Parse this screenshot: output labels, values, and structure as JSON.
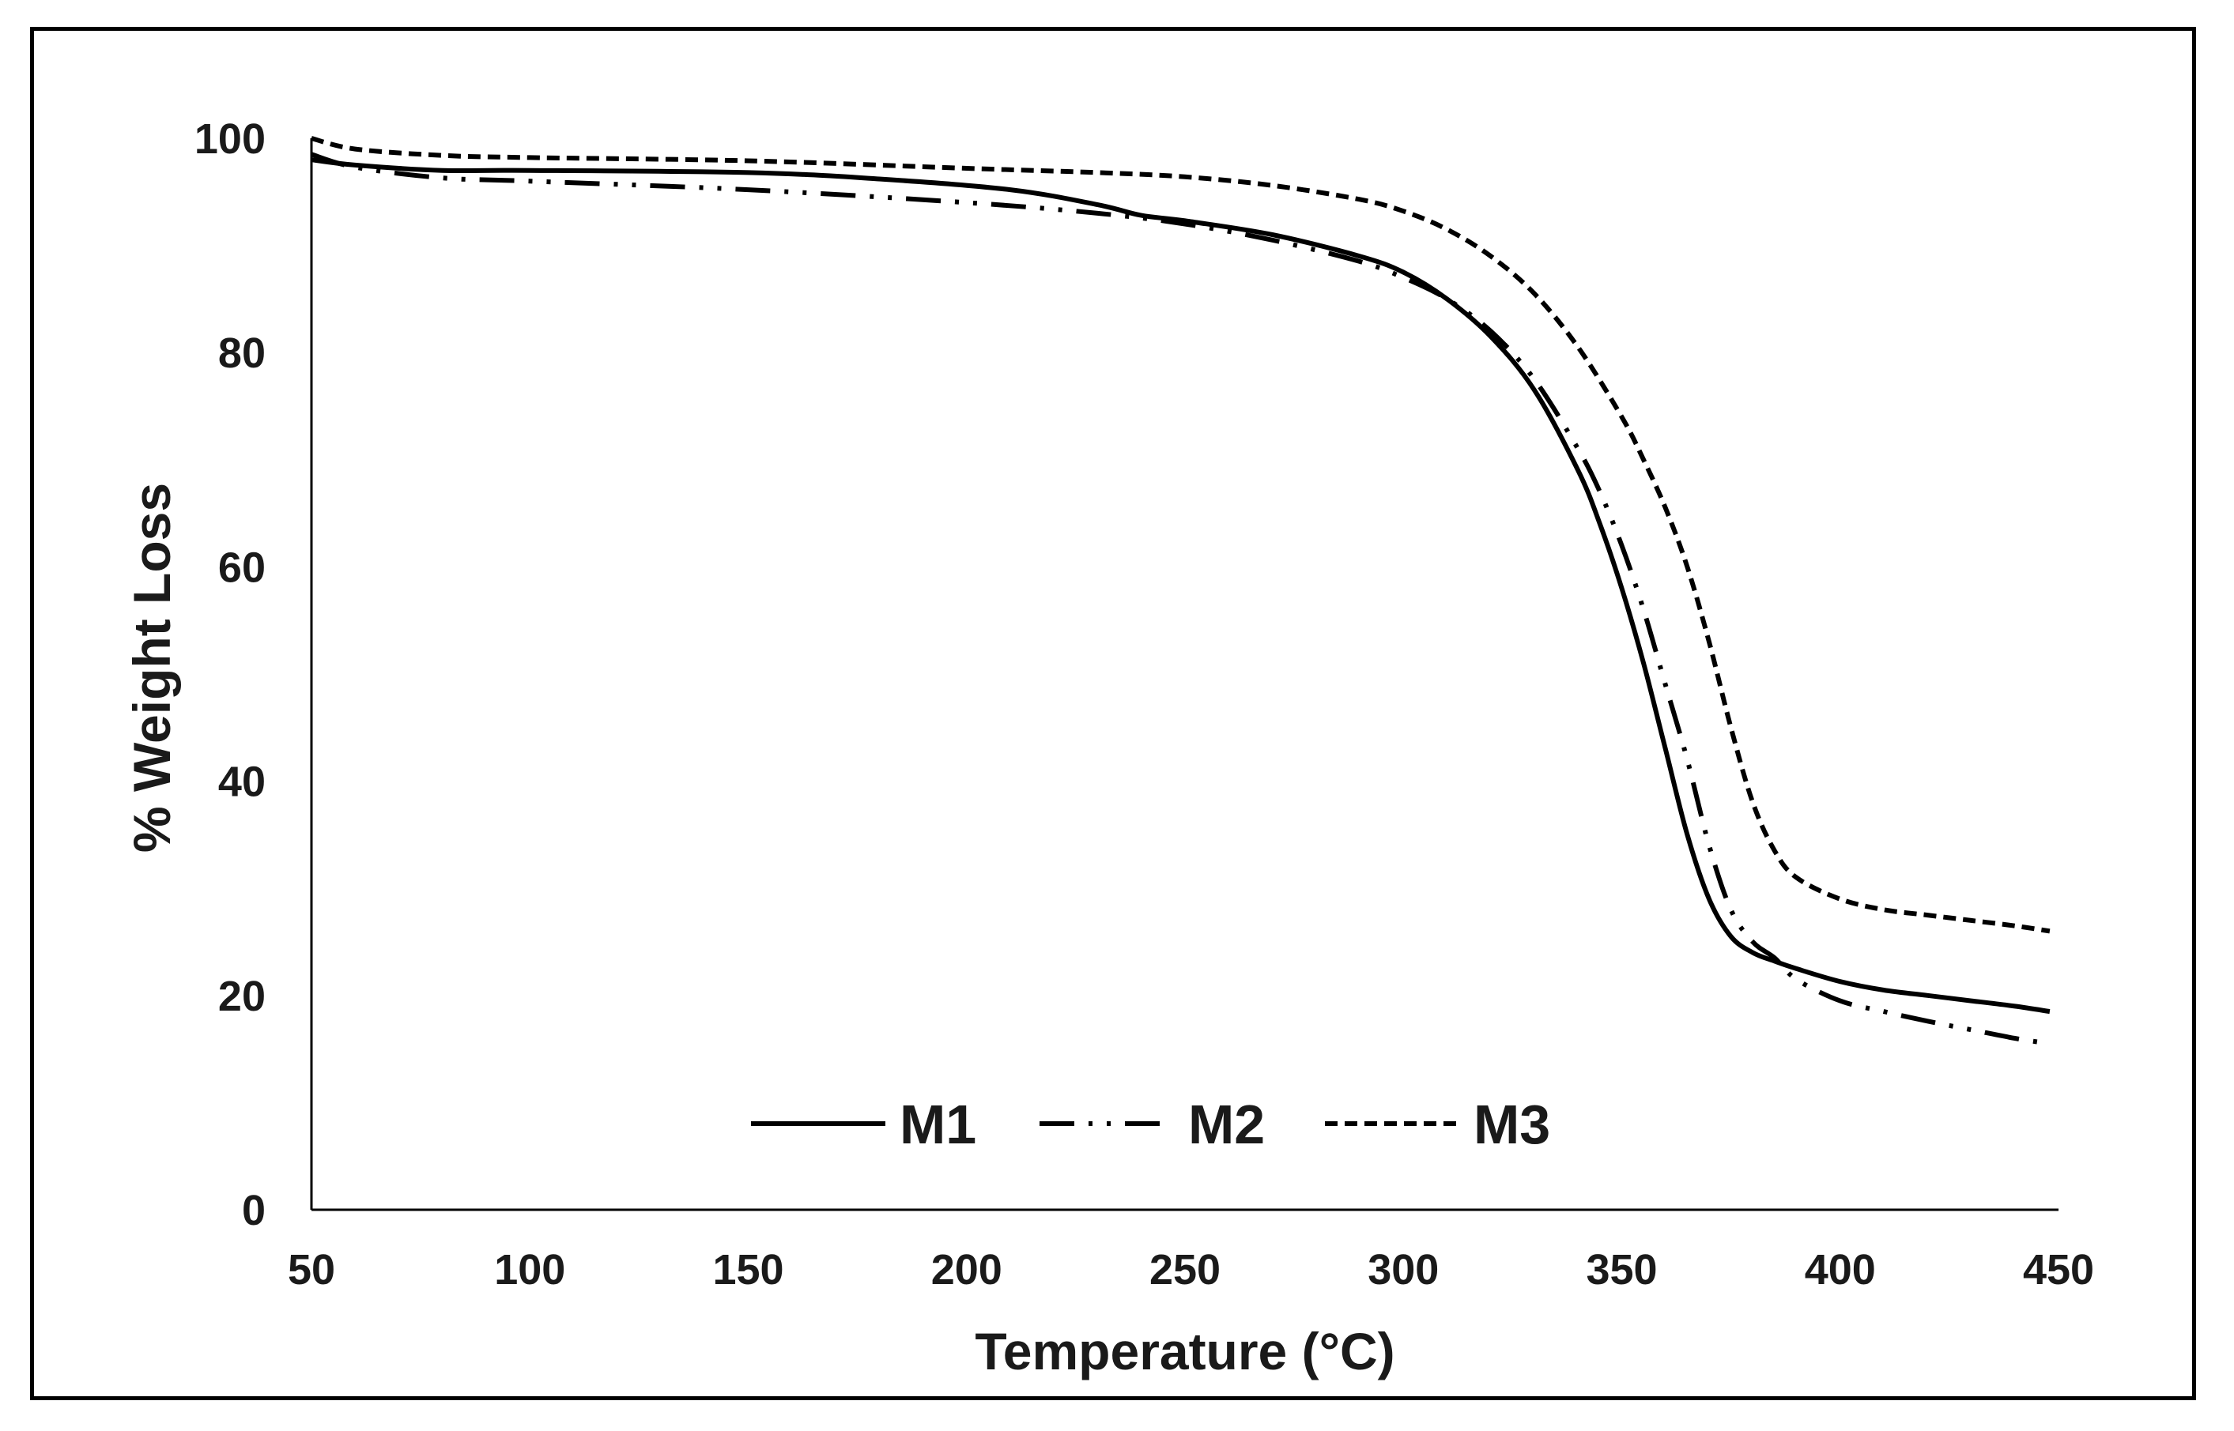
{
  "chart_data": {
    "type": "line",
    "title": "",
    "xlabel": "Temperature (°C)",
    "ylabel": "% Weight Loss",
    "xlim": [
      50,
      450
    ],
    "ylim": [
      0,
      100
    ],
    "xticks": [
      50,
      100,
      150,
      200,
      250,
      300,
      350,
      400,
      450
    ],
    "yticks": [
      0,
      20,
      40,
      60,
      80,
      100
    ],
    "grid": false,
    "legend_position": "bottom-center",
    "series": [
      {
        "name": "M1",
        "style": "solid",
        "color": "#000000",
        "x": [
          50,
          60,
          80,
          100,
          150,
          180,
          210,
          230,
          240,
          250,
          270,
          290,
          300,
          310,
          320,
          330,
          340,
          345,
          350,
          355,
          360,
          365,
          370,
          375,
          380,
          385,
          390,
          400,
          410,
          420,
          430,
          440,
          448
        ],
        "y": [
          98,
          97.5,
          97,
          97,
          96.8,
          96.2,
          95.2,
          93.8,
          92.8,
          92.3,
          91,
          89,
          87.5,
          85,
          81.5,
          76.5,
          69,
          64,
          58,
          51,
          43,
          35,
          29,
          25.5,
          24,
          23.2,
          22.5,
          21.3,
          20.5,
          20,
          19.5,
          19,
          18.5
        ]
      },
      {
        "name": "M2",
        "style": "dash-dot-dot",
        "color": "#000000",
        "x": [
          50,
          60,
          80,
          100,
          150,
          200,
          230,
          250,
          270,
          290,
          300,
          310,
          320,
          330,
          340,
          345,
          350,
          355,
          360,
          365,
          370,
          375,
          380,
          385,
          390,
          400,
          410,
          420,
          430,
          440,
          448
        ],
        "y": [
          98.5,
          97.3,
          96.3,
          96,
          95.2,
          94,
          93,
          92,
          90.5,
          88.5,
          87,
          85,
          82,
          77.5,
          71,
          67,
          62,
          56,
          49,
          42,
          34,
          28,
          25,
          23.5,
          21.5,
          19.5,
          18.5,
          17.6,
          16.8,
          16,
          15.5
        ]
      },
      {
        "name": "M3",
        "style": "dashed",
        "color": "#000000",
        "x": [
          50,
          60,
          80,
          100,
          150,
          200,
          230,
          250,
          270,
          290,
          300,
          310,
          320,
          330,
          340,
          350,
          355,
          360,
          365,
          370,
          375,
          380,
          385,
          390,
          400,
          410,
          420,
          430,
          440,
          448
        ],
        "y": [
          100,
          99,
          98.4,
          98.2,
          97.9,
          97.2,
          96.8,
          96.4,
          95.6,
          94.3,
          93.2,
          91.5,
          89,
          85.5,
          80.5,
          74,
          70,
          65.5,
          60,
          53,
          45,
          38,
          33.5,
          31,
          29,
          28,
          27.5,
          27,
          26.5,
          26
        ]
      }
    ]
  }
}
